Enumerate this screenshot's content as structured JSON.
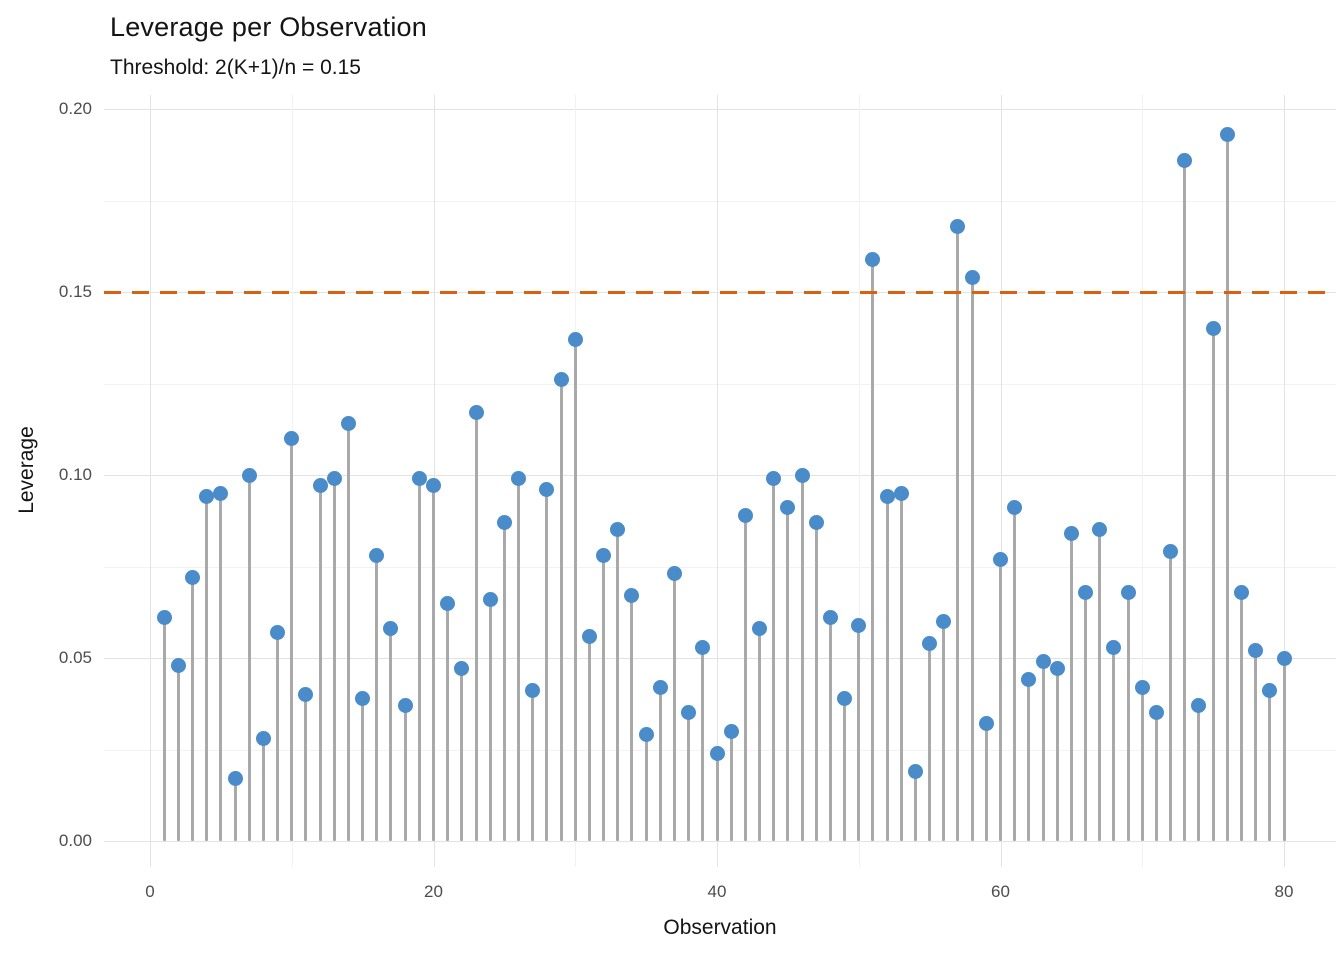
{
  "header": {
    "title": "Leverage per Observation",
    "subtitle": "Threshold: 2(K+1)/n = 0.15"
  },
  "chart_data": {
    "type": "scatter",
    "style": "lollipop-stem",
    "title": "Leverage per Observation",
    "subtitle": "Threshold: 2(K+1)/n = 0.15",
    "xlabel": "Observation",
    "ylabel": "Leverage",
    "xlim": [
      -3,
      83
    ],
    "ylim": [
      0,
      0.2
    ],
    "xticks": [
      0,
      20,
      40,
      60,
      80
    ],
    "xtick_labels": [
      "0",
      "20",
      "40",
      "60",
      "80"
    ],
    "yticks": [
      0.0,
      0.05,
      0.1,
      0.15,
      0.2
    ],
    "ytick_labels": [
      "0.00",
      "0.05",
      "0.10",
      "0.15",
      "0.20"
    ],
    "x_minor_gridlines": [
      10,
      30,
      50,
      70
    ],
    "y_minor_gridlines": [
      0.025,
      0.075,
      0.125,
      0.175
    ],
    "grid": true,
    "legend": false,
    "threshold": {
      "value": 0.15,
      "style": "dashed",
      "color": "#d9610f"
    },
    "point_color": "#4a8bc9",
    "stem_color": "#a9a9a9",
    "x": [
      1,
      2,
      3,
      4,
      5,
      6,
      7,
      8,
      9,
      10,
      11,
      12,
      13,
      14,
      15,
      16,
      17,
      18,
      19,
      20,
      21,
      22,
      23,
      24,
      25,
      26,
      27,
      28,
      29,
      30,
      31,
      32,
      33,
      34,
      35,
      36,
      37,
      38,
      39,
      40,
      41,
      42,
      43,
      44,
      45,
      46,
      47,
      48,
      49,
      50,
      51,
      52,
      53,
      54,
      55,
      56,
      57,
      58,
      59,
      60,
      61,
      62,
      63,
      64,
      65,
      66,
      67,
      68,
      69,
      70,
      71,
      72,
      73,
      74,
      75,
      76,
      77,
      78,
      79,
      80
    ],
    "values": [
      0.061,
      0.048,
      0.072,
      0.094,
      0.095,
      0.017,
      0.1,
      0.028,
      0.057,
      0.11,
      0.04,
      0.097,
      0.099,
      0.114,
      0.039,
      0.078,
      0.058,
      0.037,
      0.099,
      0.097,
      0.065,
      0.047,
      0.117,
      0.066,
      0.087,
      0.099,
      0.041,
      0.096,
      0.126,
      0.137,
      0.056,
      0.078,
      0.085,
      0.067,
      0.029,
      0.042,
      0.073,
      0.035,
      0.053,
      0.024,
      0.03,
      0.089,
      0.058,
      0.099,
      0.091,
      0.1,
      0.087,
      0.061,
      0.039,
      0.059,
      0.159,
      0.094,
      0.095,
      0.019,
      0.054,
      0.06,
      0.168,
      0.154,
      0.032,
      0.077,
      0.091,
      0.044,
      0.049,
      0.047,
      0.084,
      0.068,
      0.085,
      0.053,
      0.068,
      0.042,
      0.035,
      0.079,
      0.186,
      0.037,
      0.14,
      0.193,
      0.068,
      0.052,
      0.041,
      0.05
    ]
  }
}
